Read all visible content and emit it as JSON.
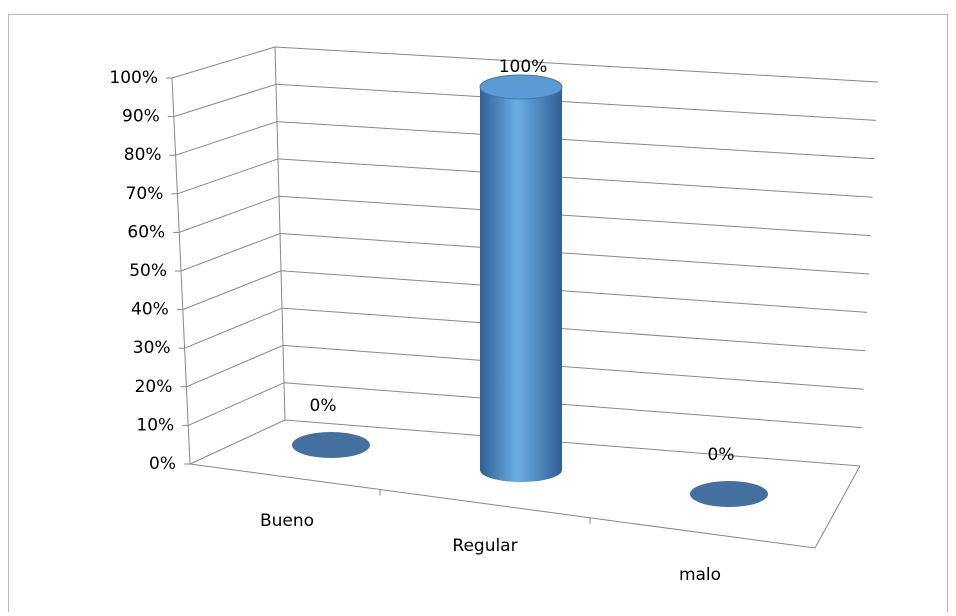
{
  "chart_data": {
    "type": "bar3d",
    "categories": [
      "Bueno",
      "Regular",
      "malo"
    ],
    "values": [
      0,
      100,
      0
    ],
    "value_labels": [
      "0%",
      "100%",
      "0%"
    ],
    "color": "#4f81bd",
    "ylim": [
      0,
      100
    ],
    "yticks": [
      {
        "value": 0,
        "label": "0%"
      },
      {
        "value": 10,
        "label": "10%"
      },
      {
        "value": 20,
        "label": "20%"
      },
      {
        "value": 30,
        "label": "30%"
      },
      {
        "value": 40,
        "label": "40%"
      },
      {
        "value": 50,
        "label": "50%"
      },
      {
        "value": 60,
        "label": "60%"
      },
      {
        "value": 70,
        "label": "70%"
      },
      {
        "value": 80,
        "label": "80%"
      },
      {
        "value": 90,
        "label": "90%"
      },
      {
        "value": 100,
        "label": "100%"
      }
    ],
    "grid": true
  }
}
